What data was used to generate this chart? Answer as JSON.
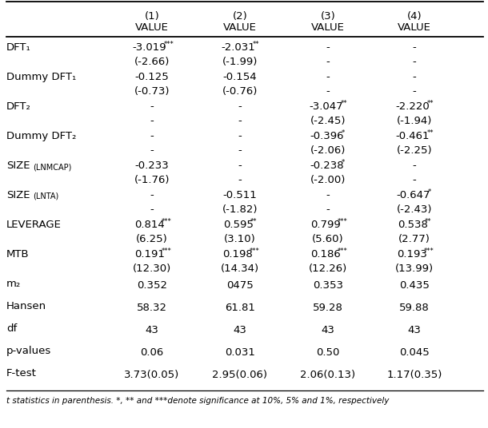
{
  "footnote": "t statistics in parenthesis. *, ** and ***denote significance at 10%, 5% and 1%, respectively",
  "bg_color": "#ffffff",
  "rows": [
    {
      "label": "DFT₁",
      "label_type": "normal",
      "vals": [
        "-3.019",
        "-2.031",
        "-",
        "-"
      ],
      "sups": [
        "***",
        "**",
        "",
        ""
      ],
      "subs": [
        "(-2.66)",
        "(-1.99)",
        "-",
        "-"
      ]
    },
    {
      "label": "Dummy DFT₁",
      "label_type": "normal",
      "vals": [
        "-0.125",
        "-0.154",
        "-",
        "-"
      ],
      "sups": [
        "",
        "",
        "",
        ""
      ],
      "subs": [
        "(-0.73)",
        "(-0.76)",
        "-",
        "-"
      ]
    },
    {
      "label": "DFT₂",
      "label_type": "normal",
      "vals": [
        "-",
        "-",
        "-3.047",
        "-2.220"
      ],
      "sups": [
        "",
        "",
        "**",
        "**"
      ],
      "subs": [
        "-",
        "-",
        "(-2.45)",
        "(-1.94)"
      ]
    },
    {
      "label": "Dummy DFT₂",
      "label_type": "normal",
      "vals": [
        "-",
        "-",
        "-0.396",
        "-0.461"
      ],
      "sups": [
        "",
        "",
        "*",
        "**"
      ],
      "subs": [
        "-",
        "-",
        "(-2.06)",
        "(-2.25)"
      ]
    },
    {
      "label": "SIZE",
      "label_type": "size_lnmcap",
      "vals": [
        "-0.233",
        "-",
        "-0.238",
        "-"
      ],
      "sups": [
        "",
        "",
        "*",
        ""
      ],
      "subs": [
        "(-1.76)",
        "-",
        "(-2.00)",
        "-"
      ]
    },
    {
      "label": "SIZE",
      "label_type": "size_lnta",
      "vals": [
        "-",
        "-0.511",
        "-",
        "-0.647"
      ],
      "sups": [
        "",
        "",
        "",
        "*"
      ],
      "subs": [
        "-",
        "(-1.82)",
        "-",
        "(-2.43)"
      ]
    },
    {
      "label": "LEVERAGE",
      "label_type": "normal",
      "vals": [
        "0.814",
        "0.595",
        "0.799",
        "0.538"
      ],
      "sups": [
        "***",
        "**",
        "***",
        "**"
      ],
      "subs": [
        "(6.25)",
        "(3.10)",
        "(5.60)",
        "(2.77)"
      ]
    },
    {
      "label": "MTB",
      "label_type": "normal",
      "vals": [
        "0.191",
        "0.198",
        "0.186",
        "0.193"
      ],
      "sups": [
        "***",
        "***",
        "***",
        "***"
      ],
      "subs": [
        "(12.30)",
        "(14.34)",
        "(12.26)",
        "(13.99)"
      ]
    },
    {
      "label": "m₂",
      "label_type": "stat",
      "vals": [
        "0.352",
        "0475",
        "0.353",
        "0.435"
      ],
      "sups": [
        "",
        "",
        "",
        ""
      ],
      "subs": [
        "",
        "",
        "",
        ""
      ]
    },
    {
      "label": "Hansen",
      "label_type": "stat",
      "vals": [
        "58.32",
        "61.81",
        "59.28",
        "59.88"
      ],
      "sups": [
        "",
        "",
        "",
        ""
      ],
      "subs": [
        "",
        "",
        "",
        ""
      ]
    },
    {
      "label": "df",
      "label_type": "stat",
      "vals": [
        "43",
        "43",
        "43",
        "43"
      ],
      "sups": [
        "",
        "",
        "",
        ""
      ],
      "subs": [
        "",
        "",
        "",
        ""
      ]
    },
    {
      "label": "p-values",
      "label_type": "stat",
      "vals": [
        "0.06",
        "0.031",
        "0.50",
        "0.045"
      ],
      "sups": [
        "",
        "",
        "",
        ""
      ],
      "subs": [
        "",
        "",
        "",
        ""
      ]
    },
    {
      "label": "F-test",
      "label_type": "stat",
      "vals": [
        "3.73(0.05)",
        "2.95(0.06)",
        "2.06(0.13)",
        "1.17(0.35)"
      ],
      "sups": [
        "",
        "",
        "",
        ""
      ],
      "subs": [
        "",
        "",
        "",
        ""
      ]
    }
  ]
}
